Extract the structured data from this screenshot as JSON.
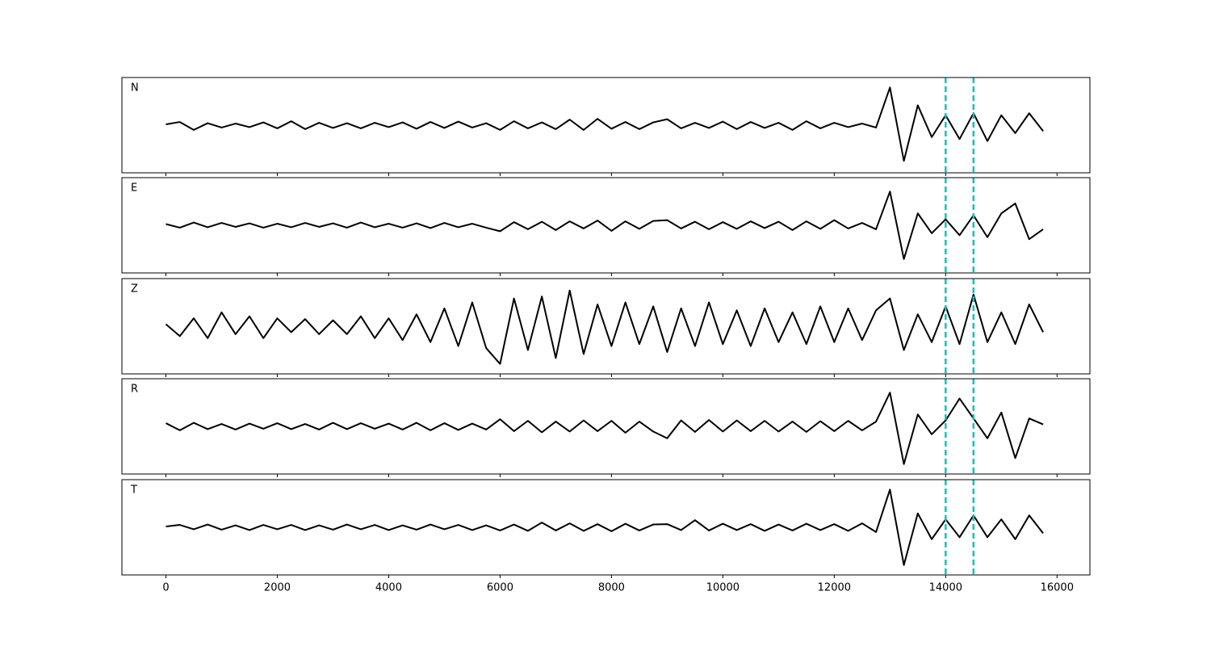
{
  "chart_data": [
    {
      "type": "line",
      "label": "N",
      "color": "#000000",
      "xlim": [
        -790,
        16590
      ],
      "ylim": [
        -1.2,
        1.2
      ],
      "xticks": [
        0,
        2000,
        4000,
        6000,
        8000,
        10000,
        12000,
        14000,
        16000
      ],
      "vlines": [
        14000,
        14500
      ],
      "vline_color": "#10c2c2",
      "x": [
        0,
        250,
        500,
        750,
        1000,
        1250,
        1500,
        1750,
        2000,
        2250,
        2500,
        2750,
        3000,
        3250,
        3500,
        3750,
        4000,
        4250,
        4500,
        4750,
        5000,
        5250,
        5500,
        5750,
        6000,
        6250,
        6500,
        6750,
        7000,
        7250,
        7500,
        7750,
        8000,
        8250,
        8500,
        8750,
        9000,
        9250,
        9500,
        9750,
        10000,
        10250,
        10500,
        10750,
        11000,
        11250,
        11500,
        11750,
        12000,
        12250,
        12500,
        12750,
        13000,
        13250,
        13500,
        13750,
        14000,
        14250,
        14500,
        14750,
        15000,
        15250,
        15500,
        15750
      ],
      "values": [
        0.02,
        0.08,
        -0.12,
        0.05,
        -0.06,
        0.04,
        -0.05,
        0.07,
        -0.08,
        0.1,
        -0.1,
        0.06,
        -0.07,
        0.05,
        -0.08,
        0.06,
        -0.05,
        0.07,
        -0.09,
        0.08,
        -0.07,
        0.09,
        -0.06,
        0.05,
        -0.12,
        0.1,
        -0.08,
        0.07,
        -0.1,
        0.14,
        -0.12,
        0.16,
        -0.09,
        0.08,
        -0.1,
        0.07,
        0.15,
        -0.08,
        0.06,
        -0.07,
        0.09,
        -0.1,
        0.08,
        -0.07,
        0.06,
        -0.12,
        0.1,
        -0.08,
        0.06,
        -0.05,
        0.04,
        -0.06,
        0.95,
        -0.9,
        0.5,
        -0.3,
        0.25,
        -0.35,
        0.3,
        -0.4,
        0.25,
        -0.2,
        0.3,
        -0.15
      ]
    },
    {
      "type": "line",
      "label": "E",
      "color": "#000000",
      "xlim": [
        -790,
        16590
      ],
      "ylim": [
        -1.2,
        1.2
      ],
      "xticks": [
        0,
        2000,
        4000,
        6000,
        8000,
        10000,
        12000,
        14000,
        16000
      ],
      "vlines": [
        14000,
        14500
      ],
      "vline_color": "#10c2c2",
      "x": [
        0,
        250,
        500,
        750,
        1000,
        1250,
        1500,
        1750,
        2000,
        2250,
        2500,
        2750,
        3000,
        3250,
        3500,
        3750,
        4000,
        4250,
        4500,
        4750,
        5000,
        5250,
        5500,
        5750,
        6000,
        6250,
        6500,
        6750,
        7000,
        7250,
        7500,
        7750,
        8000,
        8250,
        8500,
        8750,
        9000,
        9250,
        9500,
        9750,
        10000,
        10250,
        10500,
        10750,
        11000,
        11250,
        11500,
        11750,
        12000,
        12250,
        12500,
        12750,
        13000,
        13250,
        13500,
        13750,
        14000,
        14250,
        14500,
        14750,
        15000,
        15250,
        15500,
        15750
      ],
      "values": [
        0.03,
        -0.06,
        0.07,
        -0.05,
        0.06,
        -0.04,
        0.05,
        -0.06,
        0.04,
        -0.05,
        0.06,
        -0.04,
        0.05,
        -0.06,
        0.07,
        -0.05,
        0.04,
        -0.06,
        0.05,
        -0.07,
        0.06,
        -0.05,
        0.04,
        -0.06,
        -0.15,
        0.08,
        -0.1,
        0.09,
        -0.12,
        0.1,
        -0.08,
        0.12,
        -0.14,
        0.1,
        -0.09,
        0.11,
        0.13,
        -0.08,
        0.09,
        -0.1,
        0.08,
        -0.09,
        0.1,
        -0.07,
        0.09,
        -0.12,
        0.1,
        -0.09,
        0.13,
        -0.08,
        0.06,
        -0.1,
        0.85,
        -0.85,
        0.3,
        -0.2,
        0.15,
        -0.25,
        0.25,
        -0.3,
        0.3,
        0.55,
        -0.35,
        -0.1
      ]
    },
    {
      "type": "line",
      "label": "Z",
      "color": "#000000",
      "xlim": [
        -790,
        16590
      ],
      "ylim": [
        -1.2,
        1.2
      ],
      "xticks": [
        0,
        2000,
        4000,
        6000,
        8000,
        10000,
        12000,
        14000,
        16000
      ],
      "vlines": [
        14000,
        14500
      ],
      "vline_color": "#10c2c2",
      "x": [
        0,
        250,
        500,
        750,
        1000,
        1250,
        1500,
        1750,
        2000,
        2250,
        2500,
        2750,
        3000,
        3250,
        3500,
        3750,
        4000,
        4250,
        4500,
        4750,
        5000,
        5250,
        5500,
        5750,
        6000,
        6250,
        6500,
        6750,
        7000,
        7250,
        7500,
        7750,
        8000,
        8250,
        8500,
        8750,
        9000,
        9250,
        9500,
        9750,
        10000,
        10250,
        10500,
        10750,
        11000,
        11250,
        11500,
        11750,
        12000,
        12250,
        12500,
        12750,
        13000,
        13250,
        13500,
        13750,
        14000,
        14250,
        14500,
        14750,
        15000,
        15250,
        15500,
        15750
      ],
      "values": [
        0.05,
        -0.25,
        0.2,
        -0.3,
        0.35,
        -0.2,
        0.25,
        -0.3,
        0.2,
        -0.15,
        0.18,
        -0.2,
        0.15,
        -0.2,
        0.25,
        -0.3,
        0.2,
        -0.35,
        0.3,
        -0.4,
        0.45,
        -0.5,
        0.6,
        -0.55,
        -0.95,
        0.7,
        -0.6,
        0.75,
        -0.8,
        0.9,
        -0.7,
        0.55,
        -0.5,
        0.6,
        -0.45,
        0.5,
        -0.65,
        0.45,
        -0.5,
        0.6,
        -0.45,
        0.4,
        -0.5,
        0.45,
        -0.4,
        0.35,
        -0.45,
        0.5,
        -0.4,
        0.45,
        -0.35,
        0.4,
        0.7,
        -0.6,
        0.3,
        -0.4,
        0.5,
        -0.45,
        0.8,
        -0.4,
        0.35,
        -0.45,
        0.55,
        -0.15
      ]
    },
    {
      "type": "line",
      "label": "R",
      "color": "#000000",
      "xlim": [
        -790,
        16590
      ],
      "ylim": [
        -1.2,
        1.2
      ],
      "xticks": [
        0,
        2000,
        4000,
        6000,
        8000,
        10000,
        12000,
        14000,
        16000
      ],
      "vlines": [
        14000,
        14500
      ],
      "vline_color": "#10c2c2",
      "x": [
        0,
        250,
        500,
        750,
        1000,
        1250,
        1500,
        1750,
        2000,
        2250,
        2500,
        2750,
        3000,
        3250,
        3500,
        3750,
        4000,
        4250,
        4500,
        4750,
        5000,
        5250,
        5500,
        5750,
        6000,
        6250,
        6500,
        6750,
        7000,
        7250,
        7500,
        7750,
        8000,
        8250,
        8500,
        8750,
        9000,
        9250,
        9500,
        9750,
        10000,
        10250,
        10500,
        10750,
        11000,
        11250,
        11500,
        11750,
        12000,
        12250,
        12500,
        12750,
        13000,
        13250,
        13500,
        13750,
        14000,
        14250,
        14500,
        14750,
        15000,
        15250,
        15500,
        15750
      ],
      "values": [
        0.08,
        -0.1,
        0.09,
        -0.07,
        0.06,
        -0.08,
        0.07,
        -0.06,
        0.08,
        -0.07,
        0.06,
        -0.08,
        0.09,
        -0.07,
        0.08,
        -0.06,
        0.07,
        -0.08,
        0.09,
        -0.1,
        0.08,
        -0.09,
        0.07,
        -0.08,
        0.18,
        -0.12,
        0.14,
        -0.15,
        0.12,
        -0.13,
        0.15,
        -0.12,
        0.14,
        -0.16,
        0.12,
        -0.13,
        -0.3,
        0.15,
        -0.14,
        0.16,
        -0.13,
        0.15,
        -0.12,
        0.14,
        -0.13,
        0.12,
        -0.14,
        0.13,
        -0.12,
        0.14,
        -0.1,
        0.12,
        0.85,
        -0.95,
        0.3,
        -0.2,
        0.15,
        0.7,
        0.2,
        -0.3,
        0.35,
        -0.8,
        0.2,
        0.05
      ]
    },
    {
      "type": "line",
      "label": "T",
      "color": "#000000",
      "xlim": [
        -790,
        16590
      ],
      "ylim": [
        -1.2,
        1.2
      ],
      "xticks": [
        0,
        2000,
        4000,
        6000,
        8000,
        10000,
        12000,
        14000,
        16000
      ],
      "vlines": [
        14000,
        14500
      ],
      "vline_color": "#10c2c2",
      "x": [
        0,
        250,
        500,
        750,
        1000,
        1250,
        1500,
        1750,
        2000,
        2250,
        2500,
        2750,
        3000,
        3250,
        3500,
        3750,
        4000,
        4250,
        4500,
        4750,
        5000,
        5250,
        5500,
        5750,
        6000,
        6250,
        6500,
        6750,
        7000,
        7250,
        7500,
        7750,
        8000,
        8250,
        8500,
        8750,
        9000,
        9250,
        9500,
        9750,
        10000,
        10250,
        10500,
        10750,
        11000,
        11250,
        11500,
        11750,
        12000,
        12250,
        12500,
        12750,
        13000,
        13250,
        13500,
        13750,
        14000,
        14250,
        14500,
        14750,
        15000,
        15250,
        15500,
        15750
      ],
      "values": [
        0.02,
        0.06,
        -0.05,
        0.07,
        -0.06,
        0.05,
        -0.07,
        0.06,
        -0.05,
        0.06,
        -0.07,
        0.05,
        -0.06,
        0.07,
        -0.05,
        0.06,
        -0.07,
        0.05,
        -0.06,
        0.07,
        -0.05,
        0.06,
        -0.07,
        0.05,
        -0.08,
        0.07,
        -0.09,
        0.12,
        -0.08,
        0.1,
        -0.09,
        0.08,
        -0.1,
        0.09,
        -0.08,
        0.07,
        0.08,
        -0.07,
        0.18,
        -0.08,
        0.09,
        -0.07,
        0.08,
        -0.09,
        0.07,
        -0.08,
        0.09,
        -0.07,
        0.08,
        -0.09,
        0.1,
        -0.12,
        0.95,
        -0.95,
        0.35,
        -0.3,
        0.2,
        -0.25,
        0.3,
        -0.25,
        0.2,
        -0.3,
        0.3,
        -0.15
      ]
    }
  ]
}
